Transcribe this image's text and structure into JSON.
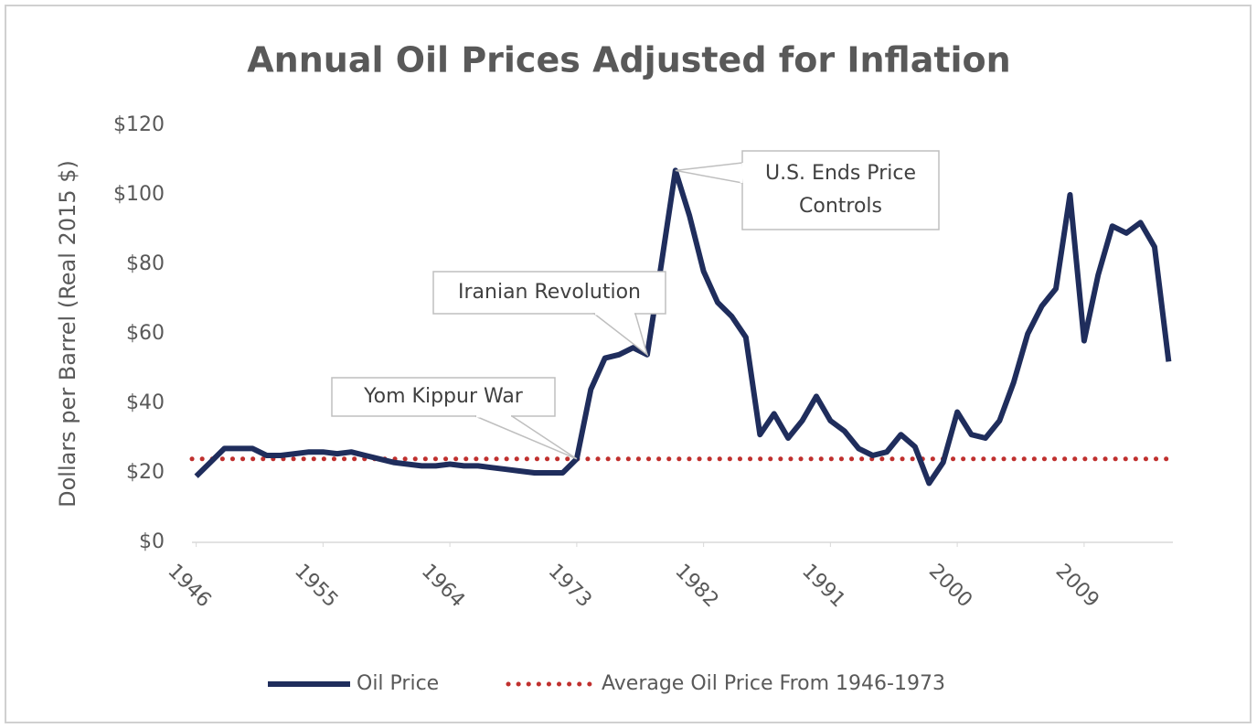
{
  "chart_data": {
    "type": "line",
    "title": "Annual Oil Prices Adjusted for Inflation",
    "y_label": "Dollars per Barrel (Real 2015 $)",
    "x": [
      1946,
      1947,
      1948,
      1949,
      1950,
      1951,
      1952,
      1953,
      1954,
      1955,
      1956,
      1957,
      1958,
      1959,
      1960,
      1961,
      1962,
      1963,
      1964,
      1965,
      1966,
      1967,
      1968,
      1969,
      1970,
      1971,
      1972,
      1973,
      1974,
      1975,
      1976,
      1977,
      1978,
      1979,
      1980,
      1981,
      1982,
      1983,
      1984,
      1985,
      1986,
      1987,
      1988,
      1989,
      1990,
      1991,
      1992,
      1993,
      1994,
      1995,
      1996,
      1997,
      1998,
      1999,
      2000,
      2001,
      2002,
      2003,
      2004,
      2005,
      2006,
      2007,
      2008,
      2009,
      2010,
      2011,
      2012,
      2013,
      2014,
      2015
    ],
    "series": [
      {
        "name": "Oil Price",
        "color": "#1f2d5c",
        "values": [
          19,
          23,
          27,
          27,
          27,
          25,
          25,
          25.5,
          26,
          26,
          25.5,
          26,
          25,
          24,
          23,
          22.5,
          22,
          22,
          22.5,
          22,
          22,
          21.5,
          21,
          20.5,
          20,
          20,
          20,
          24,
          44,
          53,
          54,
          56,
          54,
          80,
          107,
          94,
          78,
          69,
          65,
          59,
          31,
          37,
          30,
          35,
          42,
          35,
          32,
          27,
          25,
          26,
          31,
          27.5,
          17,
          23,
          37.5,
          31,
          30,
          35,
          46,
          60,
          68,
          73,
          100,
          58,
          77,
          91,
          89,
          92,
          85,
          52
        ]
      }
    ],
    "reference_line": {
      "name": "Average Oil Price From 1946-1973",
      "value": 24,
      "color": "#c0302e"
    },
    "annotations": [
      {
        "lines": [
          "Yom Kippur War"
        ],
        "x": 1973
      },
      {
        "lines": [
          "Iranian Revolution"
        ],
        "x": 1978
      },
      {
        "lines": [
          "U.S. Ends Price",
          "Controls"
        ],
        "x": 1980
      }
    ],
    "xlim": [
      1945.7,
      2015.3
    ],
    "xticks": [
      1946,
      1955,
      1964,
      1973,
      1982,
      1991,
      2000,
      2009
    ],
    "ylim": [
      0,
      120
    ],
    "yticks": [
      {
        "value": 0,
        "label": "$0"
      },
      {
        "value": 20,
        "label": "$20"
      },
      {
        "value": 40,
        "label": "$40"
      },
      {
        "value": 60,
        "label": "$60"
      },
      {
        "value": 80,
        "label": "$80"
      },
      {
        "value": 100,
        "label": "$100"
      },
      {
        "value": 120,
        "label": "$120"
      }
    ],
    "grid": false
  }
}
